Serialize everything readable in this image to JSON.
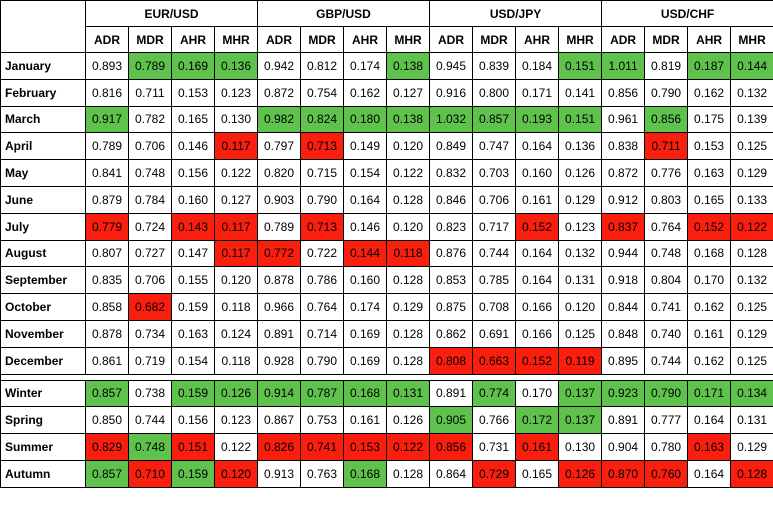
{
  "colors": {
    "green": "#5ec24d",
    "red": "#f91e0d",
    "none": "#ffffff",
    "text": "#000000"
  },
  "layout": {
    "rowLabelColWidth": 85,
    "dataColWidth": 43,
    "headerH1": 25,
    "headerH2": 25,
    "rowH": 25.8,
    "gapH": 5
  },
  "pairs": [
    "EUR/USD",
    "GBP/USD",
    "USD/JPY",
    "USD/CHF"
  ],
  "metrics": [
    "ADR",
    "MDR",
    "AHR",
    "MHR"
  ],
  "months": [
    "January",
    "February",
    "March",
    "April",
    "May",
    "June",
    "July",
    "August",
    "September",
    "October",
    "November",
    "December"
  ],
  "seasons": [
    "Winter",
    "Spring",
    "Summer",
    "Autumn"
  ],
  "monthData": {
    "January": [
      {
        "v": 0.893
      },
      {
        "v": 0.789,
        "c": "g"
      },
      {
        "v": 0.169,
        "c": "g"
      },
      {
        "v": 0.136,
        "c": "g"
      },
      {
        "v": 0.942
      },
      {
        "v": 0.812
      },
      {
        "v": 0.174
      },
      {
        "v": 0.138,
        "c": "g"
      },
      {
        "v": 0.945
      },
      {
        "v": 0.839
      },
      {
        "v": 0.184
      },
      {
        "v": 0.151,
        "c": "g"
      },
      {
        "v": 1.011,
        "c": "g"
      },
      {
        "v": 0.819
      },
      {
        "v": 0.187,
        "c": "g"
      },
      {
        "v": 0.144,
        "c": "g"
      }
    ],
    "February": [
      {
        "v": 0.816
      },
      {
        "v": 0.711
      },
      {
        "v": 0.153
      },
      {
        "v": 0.123
      },
      {
        "v": 0.872
      },
      {
        "v": 0.754
      },
      {
        "v": 0.162
      },
      {
        "v": 0.127
      },
      {
        "v": 0.916
      },
      {
        "v": 0.8
      },
      {
        "v": 0.171
      },
      {
        "v": 0.141
      },
      {
        "v": 0.856
      },
      {
        "v": 0.79
      },
      {
        "v": 0.162
      },
      {
        "v": 0.132
      }
    ],
    "March": [
      {
        "v": 0.917,
        "c": "g"
      },
      {
        "v": 0.782
      },
      {
        "v": 0.165
      },
      {
        "v": 0.13
      },
      {
        "v": 0.982,
        "c": "g"
      },
      {
        "v": 0.824,
        "c": "g"
      },
      {
        "v": 0.18,
        "c": "g"
      },
      {
        "v": 0.138,
        "c": "g"
      },
      {
        "v": 1.032,
        "c": "g"
      },
      {
        "v": 0.857,
        "c": "g"
      },
      {
        "v": 0.193,
        "c": "g"
      },
      {
        "v": 0.151,
        "c": "g"
      },
      {
        "v": 0.961
      },
      {
        "v": 0.856,
        "c": "g"
      },
      {
        "v": 0.175
      },
      {
        "v": 0.139
      }
    ],
    "April": [
      {
        "v": 0.789
      },
      {
        "v": 0.706
      },
      {
        "v": 0.146
      },
      {
        "v": 0.117,
        "c": "r"
      },
      {
        "v": 0.797
      },
      {
        "v": 0.713,
        "c": "r"
      },
      {
        "v": 0.149
      },
      {
        "v": 0.12
      },
      {
        "v": 0.849
      },
      {
        "v": 0.747
      },
      {
        "v": 0.164
      },
      {
        "v": 0.136
      },
      {
        "v": 0.838
      },
      {
        "v": 0.711,
        "c": "r"
      },
      {
        "v": 0.153
      },
      {
        "v": 0.125
      }
    ],
    "May": [
      {
        "v": 0.841
      },
      {
        "v": 0.748
      },
      {
        "v": 0.156
      },
      {
        "v": 0.122
      },
      {
        "v": 0.82
      },
      {
        "v": 0.715
      },
      {
        "v": 0.154
      },
      {
        "v": 0.122
      },
      {
        "v": 0.832
      },
      {
        "v": 0.703
      },
      {
        "v": 0.16
      },
      {
        "v": 0.126
      },
      {
        "v": 0.872
      },
      {
        "v": 0.776
      },
      {
        "v": 0.163
      },
      {
        "v": 0.129
      }
    ],
    "June": [
      {
        "v": 0.879
      },
      {
        "v": 0.784
      },
      {
        "v": 0.16
      },
      {
        "v": 0.127
      },
      {
        "v": 0.903
      },
      {
        "v": 0.79
      },
      {
        "v": 0.164
      },
      {
        "v": 0.128
      },
      {
        "v": 0.846
      },
      {
        "v": 0.706
      },
      {
        "v": 0.161
      },
      {
        "v": 0.129
      },
      {
        "v": 0.912
      },
      {
        "v": 0.803
      },
      {
        "v": 0.165
      },
      {
        "v": 0.133
      }
    ],
    "July": [
      {
        "v": 0.779,
        "c": "r"
      },
      {
        "v": 0.724
      },
      {
        "v": 0.143,
        "c": "r"
      },
      {
        "v": 0.117,
        "c": "r"
      },
      {
        "v": 0.789
      },
      {
        "v": 0.713,
        "c": "r"
      },
      {
        "v": 0.146
      },
      {
        "v": 0.12
      },
      {
        "v": 0.823
      },
      {
        "v": 0.717
      },
      {
        "v": 0.152,
        "c": "r"
      },
      {
        "v": 0.123
      },
      {
        "v": 0.837,
        "c": "r"
      },
      {
        "v": 0.764
      },
      {
        "v": 0.152,
        "c": "r"
      },
      {
        "v": 0.122,
        "c": "r"
      }
    ],
    "August": [
      {
        "v": 0.807
      },
      {
        "v": 0.727
      },
      {
        "v": 0.147
      },
      {
        "v": 0.117,
        "c": "r"
      },
      {
        "v": 0.772,
        "c": "r"
      },
      {
        "v": 0.722
      },
      {
        "v": 0.144,
        "c": "r"
      },
      {
        "v": 0.118,
        "c": "r"
      },
      {
        "v": 0.876
      },
      {
        "v": 0.744
      },
      {
        "v": 0.164
      },
      {
        "v": 0.132
      },
      {
        "v": 0.944
      },
      {
        "v": 0.748
      },
      {
        "v": 0.168
      },
      {
        "v": 0.128
      }
    ],
    "September": [
      {
        "v": 0.835
      },
      {
        "v": 0.706
      },
      {
        "v": 0.155
      },
      {
        "v": 0.12
      },
      {
        "v": 0.878
      },
      {
        "v": 0.786
      },
      {
        "v": 0.16
      },
      {
        "v": 0.128
      },
      {
        "v": 0.853
      },
      {
        "v": 0.785
      },
      {
        "v": 0.164
      },
      {
        "v": 0.131
      },
      {
        "v": 0.918
      },
      {
        "v": 0.804
      },
      {
        "v": 0.17
      },
      {
        "v": 0.132
      }
    ],
    "October": [
      {
        "v": 0.858
      },
      {
        "v": 0.682,
        "c": "r"
      },
      {
        "v": 0.159
      },
      {
        "v": 0.118
      },
      {
        "v": 0.966
      },
      {
        "v": 0.764
      },
      {
        "v": 0.174
      },
      {
        "v": 0.129
      },
      {
        "v": 0.875
      },
      {
        "v": 0.708
      },
      {
        "v": 0.166
      },
      {
        "v": 0.12
      },
      {
        "v": 0.844
      },
      {
        "v": 0.741
      },
      {
        "v": 0.162
      },
      {
        "v": 0.125
      }
    ],
    "November": [
      {
        "v": 0.878
      },
      {
        "v": 0.734
      },
      {
        "v": 0.163
      },
      {
        "v": 0.124
      },
      {
        "v": 0.891
      },
      {
        "v": 0.714
      },
      {
        "v": 0.169
      },
      {
        "v": 0.128
      },
      {
        "v": 0.862
      },
      {
        "v": 0.691
      },
      {
        "v": 0.166
      },
      {
        "v": 0.125
      },
      {
        "v": 0.848
      },
      {
        "v": 0.74
      },
      {
        "v": 0.161
      },
      {
        "v": 0.129
      }
    ],
    "December": [
      {
        "v": 0.861
      },
      {
        "v": 0.719
      },
      {
        "v": 0.154
      },
      {
        "v": 0.118
      },
      {
        "v": 0.928
      },
      {
        "v": 0.79
      },
      {
        "v": 0.169
      },
      {
        "v": 0.128
      },
      {
        "v": 0.808,
        "c": "r"
      },
      {
        "v": 0.663,
        "c": "r"
      },
      {
        "v": 0.152,
        "c": "r"
      },
      {
        "v": 0.119,
        "c": "r"
      },
      {
        "v": 0.895
      },
      {
        "v": 0.744
      },
      {
        "v": 0.162
      },
      {
        "v": 0.125
      }
    ]
  },
  "seasonData": {
    "Winter": [
      {
        "v": 0.857,
        "c": "g"
      },
      {
        "v": 0.738
      },
      {
        "v": 0.159,
        "c": "g"
      },
      {
        "v": 0.126,
        "c": "g"
      },
      {
        "v": 0.914,
        "c": "g"
      },
      {
        "v": 0.787,
        "c": "g"
      },
      {
        "v": 0.168,
        "c": "g"
      },
      {
        "v": 0.131,
        "c": "g"
      },
      {
        "v": 0.891
      },
      {
        "v": 0.774,
        "c": "g"
      },
      {
        "v": 0.17
      },
      {
        "v": 0.137,
        "c": "g"
      },
      {
        "v": 0.923,
        "c": "g"
      },
      {
        "v": 0.79,
        "c": "g"
      },
      {
        "v": 0.171,
        "c": "g"
      },
      {
        "v": 0.134,
        "c": "g"
      }
    ],
    "Spring": [
      {
        "v": 0.85
      },
      {
        "v": 0.744
      },
      {
        "v": 0.156
      },
      {
        "v": 0.123
      },
      {
        "v": 0.867
      },
      {
        "v": 0.753
      },
      {
        "v": 0.161
      },
      {
        "v": 0.126
      },
      {
        "v": 0.905,
        "c": "g"
      },
      {
        "v": 0.766
      },
      {
        "v": 0.172,
        "c": "g"
      },
      {
        "v": 0.137,
        "c": "g"
      },
      {
        "v": 0.891
      },
      {
        "v": 0.777
      },
      {
        "v": 0.164
      },
      {
        "v": 0.131
      }
    ],
    "Summer": [
      {
        "v": 0.829,
        "c": "r"
      },
      {
        "v": 0.748,
        "c": "g"
      },
      {
        "v": 0.151,
        "c": "r"
      },
      {
        "v": 0.122
      },
      {
        "v": 0.826,
        "c": "r"
      },
      {
        "v": 0.741,
        "c": "r"
      },
      {
        "v": 0.153,
        "c": "r"
      },
      {
        "v": 0.122,
        "c": "r"
      },
      {
        "v": 0.856,
        "c": "r"
      },
      {
        "v": 0.731
      },
      {
        "v": 0.161,
        "c": "r"
      },
      {
        "v": 0.13
      },
      {
        "v": 0.904
      },
      {
        "v": 0.78
      },
      {
        "v": 0.163,
        "c": "r"
      },
      {
        "v": 0.129
      }
    ],
    "Autumn": [
      {
        "v": 0.857,
        "c": "g"
      },
      {
        "v": 0.71,
        "c": "r"
      },
      {
        "v": 0.159,
        "c": "g"
      },
      {
        "v": 0.12,
        "c": "r"
      },
      {
        "v": 0.913
      },
      {
        "v": 0.763
      },
      {
        "v": 0.168,
        "c": "g"
      },
      {
        "v": 0.128
      },
      {
        "v": 0.864
      },
      {
        "v": 0.729,
        "c": "r"
      },
      {
        "v": 0.165
      },
      {
        "v": 0.126,
        "c": "r"
      },
      {
        "v": 0.87,
        "c": "r"
      },
      {
        "v": 0.76,
        "c": "r"
      },
      {
        "v": 0.164
      },
      {
        "v": 0.128,
        "c": "r"
      }
    ]
  }
}
